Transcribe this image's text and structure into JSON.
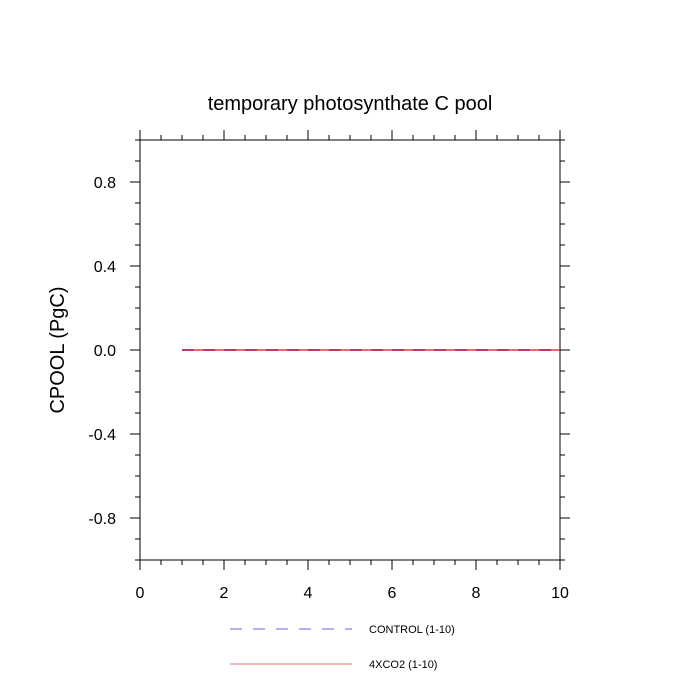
{
  "chart_data": {
    "type": "line",
    "title": "temporary photosynthate C pool",
    "xlabel": "",
    "ylabel": "CPOOL  (PgC)",
    "xlim": [
      0,
      10
    ],
    "ylim": [
      -1,
      1
    ],
    "xticks": [
      0,
      2,
      4,
      6,
      8,
      10
    ],
    "xtick_labels": [
      "0",
      "2",
      "4",
      "6",
      "8",
      "10"
    ],
    "yticks": [
      0.8,
      0.4,
      0.0,
      -0.4,
      -0.8
    ],
    "ytick_labels": [
      "0.8",
      "0.4",
      "0.0",
      "-0.4",
      "-0.8"
    ],
    "grid": false,
    "legend_position": "bottom-center",
    "series": [
      {
        "name": "CONTROL (1-10)",
        "color": "#0000cc",
        "dash": "dashed",
        "x": [
          1,
          2,
          3,
          4,
          5,
          6,
          7,
          8,
          9,
          10
        ],
        "y": [
          0,
          0,
          0,
          0,
          0,
          0,
          0,
          0,
          0,
          0
        ]
      },
      {
        "name": "4XCO2 (1-10)",
        "color": "#e01010",
        "dash": "solid",
        "x": [
          1,
          2,
          3,
          4,
          5,
          6,
          7,
          8,
          9,
          10
        ],
        "y": [
          0,
          0,
          0,
          0,
          0,
          0,
          0,
          0,
          0,
          0
        ]
      }
    ]
  }
}
